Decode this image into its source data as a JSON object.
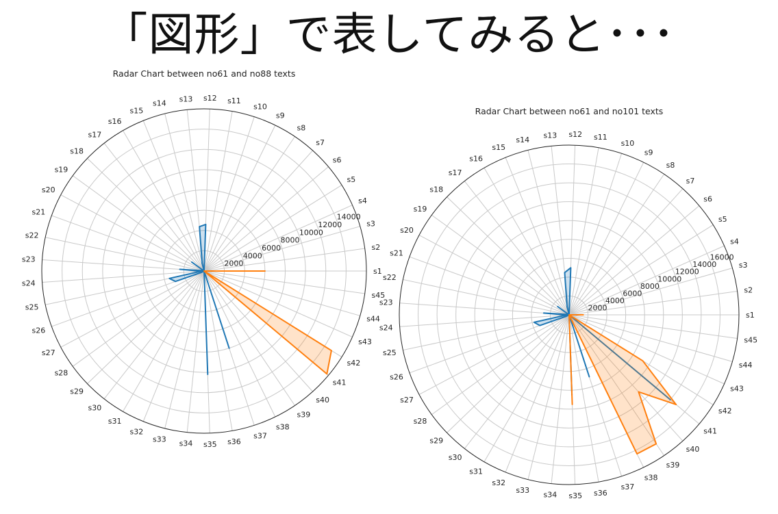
{
  "slide": {
    "title": "「図形」で表してみると･･･"
  },
  "colors": {
    "series_blue": "#1f77b4",
    "series_orange": "#ff7f0e",
    "grid": "#c8c8c8",
    "frame": "#222222"
  },
  "chart_data": [
    {
      "type": "radar",
      "title": "Radar Chart between no61 and no88 texts",
      "categories": [
        "s1",
        "s2",
        "s3",
        "s4",
        "s5",
        "s6",
        "s7",
        "s8",
        "s9",
        "s10",
        "s11",
        "s12",
        "s13",
        "s14",
        "s15",
        "s16",
        "s17",
        "s18",
        "s19",
        "s20",
        "s21",
        "s22",
        "s23",
        "s24",
        "s25",
        "s26",
        "s27",
        "s28",
        "s29",
        "s30",
        "s31",
        "s32",
        "s33",
        "s34",
        "s35",
        "s36",
        "s37",
        "s38",
        "s39",
        "s40",
        "s41",
        "s42",
        "s43",
        "s44",
        "s45"
      ],
      "rmax": 16000,
      "rticks": [
        2000,
        4000,
        6000,
        8000,
        10000,
        12000,
        14000
      ],
      "grid": true,
      "series": [
        {
          "color_key": "series_blue",
          "values": [
            0,
            0,
            0,
            0,
            0,
            0,
            0,
            0,
            0,
            0,
            0,
            4600,
            4400,
            800,
            0,
            0,
            0,
            0,
            1500,
            0,
            0,
            200,
            2400,
            300,
            3500,
            3000,
            300,
            0,
            0,
            0,
            0,
            0,
            0,
            0,
            10200,
            0,
            8000,
            0,
            0,
            0,
            0,
            0,
            0,
            0,
            0
          ]
        },
        {
          "color_key": "series_orange",
          "values": [
            6000,
            0,
            0,
            0,
            0,
            0,
            0,
            0,
            0,
            0,
            0,
            0,
            0,
            0,
            0,
            0,
            0,
            0,
            0,
            0,
            0,
            0,
            0,
            0,
            0,
            0,
            0,
            0,
            0,
            0,
            0,
            0,
            0,
            0,
            0,
            0,
            0,
            0,
            0,
            0,
            15800,
            14800,
            0,
            0,
            0
          ]
        }
      ]
    },
    {
      "type": "radar",
      "title": "Radar Chart between no61 and no101 texts",
      "categories": [
        "s1",
        "s2",
        "s3",
        "s4",
        "s5",
        "s6",
        "s7",
        "s8",
        "s9",
        "s10",
        "s11",
        "s12",
        "s13",
        "s14",
        "s15",
        "s16",
        "s17",
        "s18",
        "s19",
        "s20",
        "s21",
        "s22",
        "s23",
        "s24",
        "s25",
        "s26",
        "s27",
        "s28",
        "s29",
        "s30",
        "s31",
        "s32",
        "s33",
        "s34",
        "s35",
        "s36",
        "s37",
        "s38",
        "s39",
        "s40",
        "s41",
        "s42",
        "s43",
        "s44",
        "s45"
      ],
      "rmax": 18000,
      "rticks": [
        2000,
        4000,
        6000,
        8000,
        10000,
        12000,
        14000,
        16000
      ],
      "grid": true,
      "series": [
        {
          "color_key": "series_blue",
          "values": [
            0,
            0,
            0,
            0,
            0,
            0,
            0,
            0,
            0,
            0,
            0,
            5000,
            4500,
            900,
            0,
            0,
            0,
            0,
            1500,
            0,
            0,
            200,
            2700,
            300,
            3800,
            3300,
            300,
            0,
            0,
            0,
            0,
            0,
            0,
            0,
            8500,
            0,
            6900,
            0,
            0,
            0,
            14000,
            0,
            0,
            0,
            0
          ]
        },
        {
          "color_key": "series_orange",
          "values": [
            1500,
            0,
            0,
            0,
            0,
            0,
            0,
            0,
            0,
            0,
            0,
            0,
            0,
            0,
            0,
            0,
            0,
            0,
            0,
            0,
            0,
            0,
            0,
            0,
            0,
            0,
            0,
            0,
            0,
            0,
            0,
            0,
            0,
            0,
            9500,
            0,
            0,
            16400,
            16500,
            11000,
            14800,
            9200,
            0,
            0,
            0
          ]
        }
      ]
    }
  ]
}
